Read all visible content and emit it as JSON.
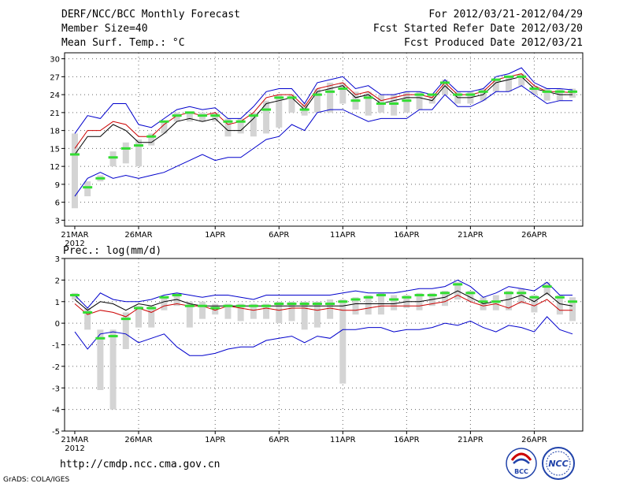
{
  "header": {
    "title": "DERF/NCC/BCC Monthly Forecast",
    "member_size": "Member Size=40",
    "variable": "Mean Surf. Temp.: °C",
    "period": "For 2012/03/21-2012/04/29",
    "start_date": "Fcst Started Refer Date 2012/03/20",
    "produced_date": "Fcst Produced Date 2012/03/21"
  },
  "footer": {
    "url": "http://cmdp.ncc.cma.gov.cn",
    "credit": "GrADS: COLA/IGES",
    "logo_left": "BCC",
    "logo_right": "NCC"
  },
  "colors": {
    "max_line": "#0000cc",
    "upper_line": "#cc0000",
    "mean_line": "#000000",
    "box": "#d4d4d4",
    "median": "#33dd33"
  },
  "chart_data": [
    {
      "type": "line",
      "title": "Mean Surf. Temp.: °C",
      "x_tick_labels": [
        "21MAR",
        "26MAR",
        "1APR",
        "6APR",
        "11APR",
        "16APR",
        "21APR",
        "26APR"
      ],
      "x_tick_days": [
        0,
        5,
        11,
        16,
        21,
        26,
        31,
        36
      ],
      "year_label": "2012",
      "xlim": [
        -0.8,
        39.8
      ],
      "ylim": [
        2,
        31
      ],
      "yticks": [
        3,
        6,
        9,
        12,
        15,
        18,
        21,
        24,
        27,
        30
      ],
      "series": [
        {
          "name": "max",
          "values": [
            17.5,
            20.5,
            20,
            22.5,
            22.5,
            19,
            18.5,
            20,
            21.5,
            22,
            21.5,
            21.8,
            20,
            20,
            22,
            24.5,
            25,
            25,
            22.5,
            26,
            26.5,
            27,
            25,
            25.5,
            24,
            24,
            24.5,
            24.5,
            24,
            26.5,
            24.5,
            24.5,
            25,
            27,
            27.5,
            28.5,
            26,
            25,
            25,
            24.8
          ]
        },
        {
          "name": "upper",
          "values": [
            15,
            18,
            18,
            19.5,
            19,
            17,
            17,
            19,
            20.5,
            21,
            20.5,
            21,
            19,
            19.5,
            21,
            23.5,
            24,
            24,
            22,
            25,
            25.5,
            26,
            24,
            24.5,
            23,
            23.5,
            24,
            24,
            23.5,
            26,
            24,
            24,
            24.5,
            26.5,
            27,
            27.5,
            25.5,
            24.5,
            24.5,
            24.3
          ]
        },
        {
          "name": "mean",
          "values": [
            14,
            17,
            17,
            19,
            18,
            16,
            16,
            17.5,
            19.5,
            20,
            19.5,
            20,
            18,
            18,
            20,
            22.5,
            23,
            23.5,
            21.5,
            24.5,
            25,
            25.5,
            23.5,
            24,
            22.5,
            23,
            23.5,
            23.5,
            23,
            25.5,
            23.5,
            23.5,
            24,
            26,
            26.5,
            27,
            25,
            24.5,
            24,
            24
          ]
        },
        {
          "name": "min",
          "values": [
            7,
            10,
            11,
            10,
            10.5,
            10,
            10.5,
            11,
            12,
            13,
            14,
            13,
            13.5,
            13.5,
            15,
            16.5,
            17,
            19,
            18,
            21,
            21.5,
            21.5,
            20.5,
            19.5,
            20,
            20,
            20,
            21.5,
            21.5,
            24,
            22,
            22,
            23,
            24.5,
            24.5,
            25.5,
            24,
            22.5,
            23,
            23
          ]
        }
      ],
      "boxes": [
        {
          "day": 0,
          "low": 5,
          "high": 17.5,
          "median": 14
        },
        {
          "day": 1,
          "low": 7,
          "high": 9.5,
          "median": 8.5
        },
        {
          "day": 2,
          "low": 9.5,
          "high": 10.5,
          "median": 10
        },
        {
          "day": 3,
          "low": 12,
          "high": 14.5,
          "median": 13.5
        },
        {
          "day": 4,
          "low": 12.5,
          "high": 16,
          "median": 15
        },
        {
          "day": 5,
          "low": 12,
          "high": 16.5,
          "median": 15.5
        },
        {
          "day": 6,
          "low": 15.5,
          "high": 17.5,
          "median": 17
        },
        {
          "day": 7,
          "low": 17.5,
          "high": 19.5,
          "median": 19.5
        },
        {
          "day": 8,
          "low": 19.5,
          "high": 21,
          "median": 20.5
        },
        {
          "day": 9,
          "low": 19.5,
          "high": 21,
          "median": 21
        },
        {
          "day": 10,
          "low": 19.5,
          "high": 21,
          "median": 20.5
        },
        {
          "day": 11,
          "low": 19.5,
          "high": 21,
          "median": 20.5
        },
        {
          "day": 12,
          "low": 17,
          "high": 20,
          "median": 19.5
        },
        {
          "day": 13,
          "low": 17.5,
          "high": 20,
          "median": 19.5
        },
        {
          "day": 14,
          "low": 17,
          "high": 21,
          "median": 20.5
        },
        {
          "day": 15,
          "low": 17.5,
          "high": 23,
          "median": 21.5
        },
        {
          "day": 16,
          "low": 18.5,
          "high": 24,
          "median": 23.5
        },
        {
          "day": 17,
          "low": 21,
          "high": 24,
          "median": 23.5
        },
        {
          "day": 18,
          "low": 20.5,
          "high": 22.5,
          "median": 21.5
        },
        {
          "day": 19,
          "low": 21,
          "high": 25,
          "median": 24
        },
        {
          "day": 20,
          "low": 21,
          "high": 26,
          "median": 24.5
        },
        {
          "day": 21,
          "low": 22.5,
          "high": 26,
          "median": 25
        },
        {
          "day": 22,
          "low": 21.5,
          "high": 24.5,
          "median": 23
        },
        {
          "day": 23,
          "low": 20.5,
          "high": 24.5,
          "median": 23.5
        },
        {
          "day": 24,
          "low": 21,
          "high": 24,
          "median": 22.5
        },
        {
          "day": 25,
          "low": 20.5,
          "high": 24,
          "median": 22.5
        },
        {
          "day": 26,
          "low": 21,
          "high": 24.5,
          "median": 23
        },
        {
          "day": 27,
          "low": 21.5,
          "high": 24.5,
          "median": 24
        },
        {
          "day": 28,
          "low": 22.5,
          "high": 24,
          "median": 24
        },
        {
          "day": 29,
          "low": 24,
          "high": 26.5,
          "median": 26
        },
        {
          "day": 30,
          "low": 22.5,
          "high": 24.5,
          "median": 24
        },
        {
          "day": 31,
          "low": 22.5,
          "high": 24.5,
          "median": 24
        },
        {
          "day": 32,
          "low": 23,
          "high": 25,
          "median": 24.5
        },
        {
          "day": 33,
          "low": 24.5,
          "high": 26.5,
          "median": 26.5
        },
        {
          "day": 34,
          "low": 24.5,
          "high": 27,
          "median": 27
        },
        {
          "day": 35,
          "low": 25.5,
          "high": 27.5,
          "median": 27
        },
        {
          "day": 36,
          "low": 24,
          "high": 25.5,
          "median": 25
        },
        {
          "day": 37,
          "low": 23,
          "high": 25,
          "median": 24.5
        },
        {
          "day": 38,
          "low": 23,
          "high": 25,
          "median": 24.5
        },
        {
          "day": 39,
          "low": 23.5,
          "high": 25,
          "median": 24.5
        }
      ]
    },
    {
      "type": "line",
      "title": "Prec.: log(mm/d)",
      "x_tick_labels": [
        "21MAR",
        "26MAR",
        "1APR",
        "6APR",
        "11APR",
        "16APR",
        "21APR",
        "26APR"
      ],
      "x_tick_days": [
        0,
        5,
        11,
        16,
        21,
        26,
        31,
        36
      ],
      "year_label": "2012",
      "xlim": [
        -0.8,
        39.8
      ],
      "ylim": [
        -5,
        3
      ],
      "yticks": [
        -5,
        -4,
        -3,
        -2,
        -1,
        0,
        1,
        2,
        3
      ],
      "series": [
        {
          "name": "max",
          "values": [
            1.3,
            0.7,
            1.4,
            1.1,
            1,
            1,
            1.1,
            1.3,
            1.4,
            1.3,
            1.2,
            1.3,
            1.3,
            1.2,
            1.1,
            1.3,
            1.3,
            1.3,
            1.3,
            1.3,
            1.3,
            1.4,
            1.5,
            1.4,
            1.4,
            1.4,
            1.5,
            1.6,
            1.6,
            1.7,
            2,
            1.7,
            1.2,
            1.4,
            1.7,
            1.6,
            1.5,
            1.9,
            1.3,
            1.3
          ]
        },
        {
          "name": "upper",
          "values": [
            0.9,
            0.4,
            0.6,
            0.5,
            0.3,
            0.7,
            0.5,
            0.8,
            0.9,
            0.8,
            0.8,
            0.6,
            0.8,
            0.7,
            0.6,
            0.7,
            0.6,
            0.7,
            0.7,
            0.6,
            0.7,
            0.6,
            0.6,
            0.7,
            0.8,
            0.8,
            0.8,
            0.8,
            0.9,
            1,
            1.3,
            1,
            0.8,
            0.9,
            0.7,
            1,
            0.8,
            1.1,
            0.6,
            0.6
          ]
        },
        {
          "name": "mean",
          "values": [
            1.1,
            0.6,
            1,
            0.9,
            0.6,
            0.9,
            0.8,
            1,
            1.1,
            0.9,
            0.8,
            0.8,
            0.8,
            0.8,
            0.8,
            0.8,
            0.8,
            0.8,
            0.8,
            0.8,
            0.8,
            0.8,
            0.9,
            0.9,
            0.9,
            0.9,
            1,
            1,
            1.1,
            1.2,
            1.5,
            1.2,
            0.9,
            1,
            1.1,
            1.3,
            1,
            1.4,
            0.9,
            0.8
          ]
        },
        {
          "name": "min",
          "values": [
            -0.4,
            -1.2,
            -0.5,
            -0.4,
            -0.5,
            -0.9,
            -0.7,
            -0.5,
            -1.1,
            -1.5,
            -1.5,
            -1.4,
            -1.2,
            -1.1,
            -1.1,
            -0.8,
            -0.7,
            -0.6,
            -0.9,
            -0.6,
            -0.7,
            -0.3,
            -0.3,
            -0.2,
            -0.2,
            -0.4,
            -0.3,
            -0.3,
            -0.2,
            0,
            -0.1,
            0.1,
            -0.2,
            -0.4,
            -0.1,
            -0.2,
            -0.4,
            0.3,
            -0.3,
            -0.5
          ]
        }
      ],
      "boxes": [
        {
          "day": 0,
          "low": 1.1,
          "high": 1.4,
          "median": 1.3
        },
        {
          "day": 1,
          "low": -0.3,
          "high": 0.7,
          "median": 0.5
        },
        {
          "day": 2,
          "low": -3.1,
          "high": -0.3,
          "median": -0.7
        },
        {
          "day": 3,
          "low": -4,
          "high": -0.3,
          "median": -0.6
        },
        {
          "day": 4,
          "low": -1.2,
          "high": 0.5,
          "median": 0.2
        },
        {
          "day": 5,
          "low": -0.2,
          "high": 0.8,
          "median": 0.7
        },
        {
          "day": 6,
          "low": -0.2,
          "high": 0.8,
          "median": 0.7
        },
        {
          "day": 7,
          "low": 0.6,
          "high": 1.2,
          "median": 1.2
        },
        {
          "day": 8,
          "low": 0.8,
          "high": 1.4,
          "median": 1.3
        },
        {
          "day": 9,
          "low": -0.2,
          "high": 1,
          "median": 0.8
        },
        {
          "day": 10,
          "low": 0.2,
          "high": 1,
          "median": 0.8
        },
        {
          "day": 11,
          "low": 0.4,
          "high": 0.9,
          "median": 0.7
        },
        {
          "day": 12,
          "low": 0.2,
          "high": 0.9,
          "median": 0.8
        },
        {
          "day": 13,
          "low": 0.1,
          "high": 0.9,
          "median": 0.8
        },
        {
          "day": 14,
          "low": 0.2,
          "high": 0.9,
          "median": 0.8
        },
        {
          "day": 15,
          "low": 0.2,
          "high": 0.9,
          "median": 0.8
        },
        {
          "day": 16,
          "low": 0,
          "high": 1,
          "median": 0.9
        },
        {
          "day": 17,
          "low": 0.1,
          "high": 1,
          "median": 0.9
        },
        {
          "day": 18,
          "low": -0.3,
          "high": 1,
          "median": 0.9
        },
        {
          "day": 19,
          "low": -0.2,
          "high": 1,
          "median": 0.9
        },
        {
          "day": 20,
          "low": 0.2,
          "high": 1.1,
          "median": 0.9
        },
        {
          "day": 21,
          "low": -2.8,
          "high": 1.1,
          "median": 1
        },
        {
          "day": 22,
          "low": 0.4,
          "high": 1.2,
          "median": 1.1
        },
        {
          "day": 23,
          "low": 0.4,
          "high": 1.3,
          "median": 1.2
        },
        {
          "day": 24,
          "low": 0.4,
          "high": 1.4,
          "median": 1.3
        },
        {
          "day": 25,
          "low": 0.6,
          "high": 1.3,
          "median": 1.1
        },
        {
          "day": 26,
          "low": 0.7,
          "high": 1.3,
          "median": 1.2
        },
        {
          "day": 27,
          "low": 0.6,
          "high": 1.4,
          "median": 1.3
        },
        {
          "day": 28,
          "low": 0.8,
          "high": 1.4,
          "median": 1.3
        },
        {
          "day": 29,
          "low": 0.8,
          "high": 1.5,
          "median": 1.4
        },
        {
          "day": 30,
          "low": 1.1,
          "high": 1.9,
          "median": 1.8
        },
        {
          "day": 31,
          "low": 1,
          "high": 1.5,
          "median": 1.4
        },
        {
          "day": 32,
          "low": 0.6,
          "high": 1.2,
          "median": 1
        },
        {
          "day": 33,
          "low": 0.6,
          "high": 1.3,
          "median": 1
        },
        {
          "day": 34,
          "low": 0.6,
          "high": 1.5,
          "median": 1.4
        },
        {
          "day": 35,
          "low": 0.9,
          "high": 1.6,
          "median": 1.4
        },
        {
          "day": 36,
          "low": 0.5,
          "high": 1.3,
          "median": 1.2
        },
        {
          "day": 37,
          "low": 1.3,
          "high": 1.9,
          "median": 1.7
        },
        {
          "day": 38,
          "low": 0.4,
          "high": 1.3,
          "median": 1.2
        },
        {
          "day": 39,
          "low": 0.1,
          "high": 1.2,
          "median": 1
        }
      ]
    }
  ]
}
